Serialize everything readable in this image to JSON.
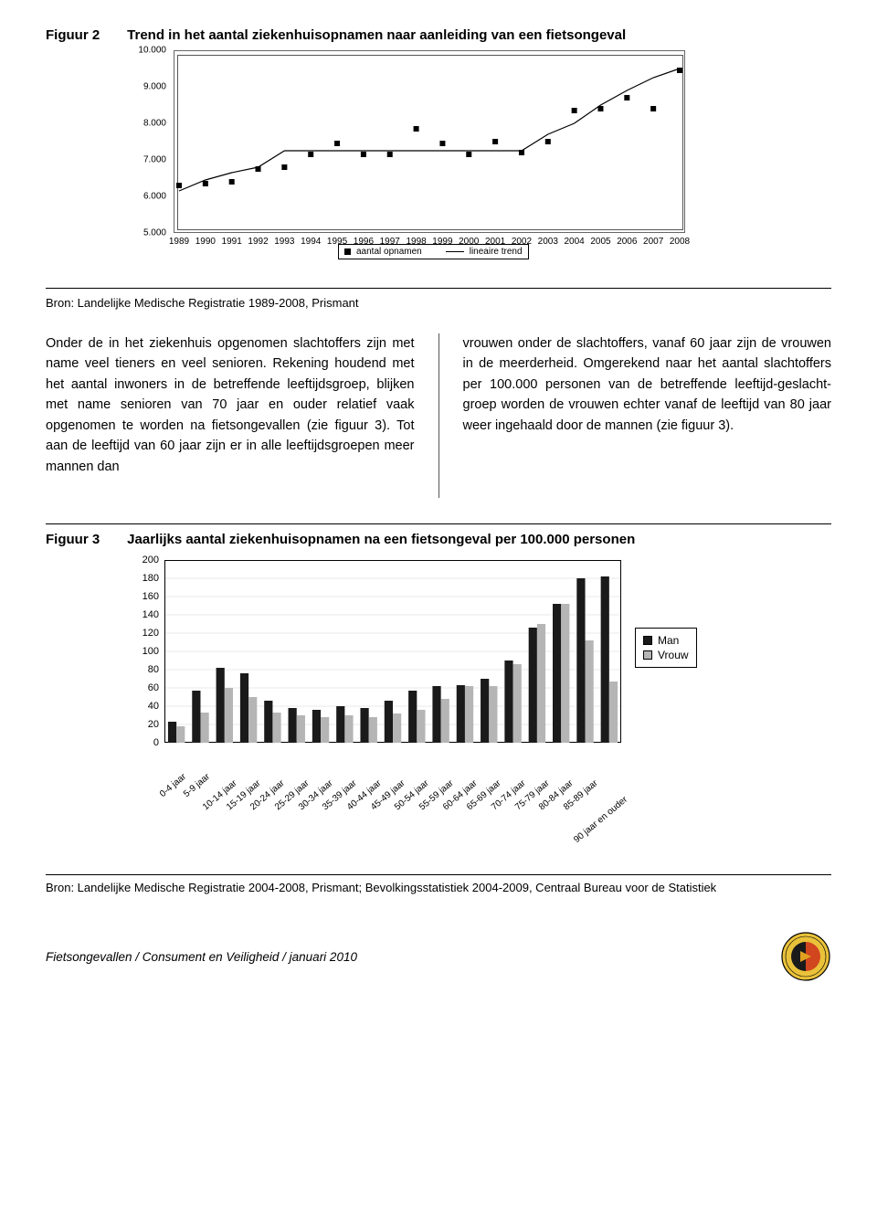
{
  "figure2": {
    "label": "Figuur 2",
    "title": "Trend in het aantal ziekenhuisopnamen naar aanleiding van een fietsongeval",
    "type": "scatter+line",
    "ylim": [
      5000,
      10000
    ],
    "yticks": [
      5000,
      6000,
      7000,
      8000,
      9000,
      10000
    ],
    "ytick_labels": [
      "5.000",
      "6.000",
      "7.000",
      "8.000",
      "9.000",
      "10.000"
    ],
    "xticks": [
      "1989",
      "1990",
      "1991",
      "1992",
      "1993",
      "1994",
      "1995",
      "1996",
      "1997",
      "1998",
      "1999",
      "2000",
      "2001",
      "2002",
      "2003",
      "2004",
      "2005",
      "2006",
      "2007",
      "2008"
    ],
    "points": [
      6300,
      6350,
      6400,
      6750,
      6800,
      7150,
      7450,
      7150,
      7150,
      7850,
      7450,
      7150,
      7500,
      7200,
      7500,
      8350,
      8400,
      8700,
      8400,
      9450
    ],
    "trend": [
      6150,
      6450,
      6650,
      6800,
      7250,
      7250,
      7250,
      7250,
      7250,
      7250,
      7250,
      7250,
      7250,
      7250,
      7700,
      8000,
      8500,
      8900,
      9250,
      9500
    ],
    "point_color": "#000000",
    "line_color": "#000000",
    "legend_points": "aantal opnamen",
    "legend_line": "lineaire trend",
    "source": "Bron: Landelijke Medische Registratie 1989-2008, Prismant"
  },
  "body": {
    "left": "Onder de in het ziekenhuis opgenomen slachtoffers zijn met name veel tieners en veel senioren. Rekening houdend met het aantal inwoners in de betreffende leeftijdsgroep, blijken met name senioren van 70 jaar en ouder relatief vaak opgenomen te worden na fietsongevallen (zie figuur 3). Tot aan de leeftijd van 60 jaar zijn er in alle leeftijdsgroepen meer mannen dan",
    "right": "vrouwen onder de slachtoffers, vanaf 60 jaar zijn de vrouwen in de meerderheid. Omgerekend naar het aantal slachtoffers per 100.000 personen van de betreffende leeftijd-geslacht-groep worden de vrouwen echter vanaf de leeftijd van 80 jaar weer ingehaald door de mannen (zie figuur 3)."
  },
  "figure3": {
    "label": "Figuur 3",
    "title": "Jaarlijks aantal ziekenhuisopnamen na een fietsongeval per 100.000 personen",
    "type": "grouped-bar",
    "ylim": [
      0,
      200
    ],
    "yticks": [
      0,
      20,
      40,
      60,
      80,
      100,
      120,
      140,
      160,
      180,
      200
    ],
    "categories": [
      "0-4 jaar",
      "5-9 jaar",
      "10-14 jaar",
      "15-19 jaar",
      "20-24 jaar",
      "25-29 jaar",
      "30-34 jaar",
      "35-39 jaar",
      "40-44 jaar",
      "45-49 jaar",
      "50-54 jaar",
      "55-59 jaar",
      "60-64 jaar",
      "65-69 jaar",
      "70-74 jaar",
      "75-79 jaar",
      "80-84 jaar",
      "85-89 jaar",
      "90 jaar en ouder"
    ],
    "series": [
      {
        "name": "Man",
        "color": "#1a1a1a",
        "values": [
          23,
          57,
          82,
          76,
          46,
          38,
          36,
          40,
          38,
          46,
          57,
          62,
          63,
          70,
          90,
          126,
          152,
          180,
          182
        ]
      },
      {
        "name": "Vrouw",
        "color": "#b5b5b5",
        "values": [
          18,
          33,
          60,
          50,
          33,
          30,
          28,
          30,
          28,
          32,
          36,
          48,
          62,
          62,
          86,
          130,
          152,
          112,
          67
        ]
      }
    ],
    "source": "Bron: Landelijke Medische Registratie 2004-2008, Prismant; Bevolkingsstatistiek 2004-2009, Centraal Bureau voor de Statistiek"
  },
  "footer": {
    "text": "Fietsongevallen / Consument en Veiligheid / januari 2010",
    "logo_colors": {
      "outer": "#eac23a",
      "inner_left": "#1a1a1a",
      "inner_right": "#d1451f"
    }
  }
}
